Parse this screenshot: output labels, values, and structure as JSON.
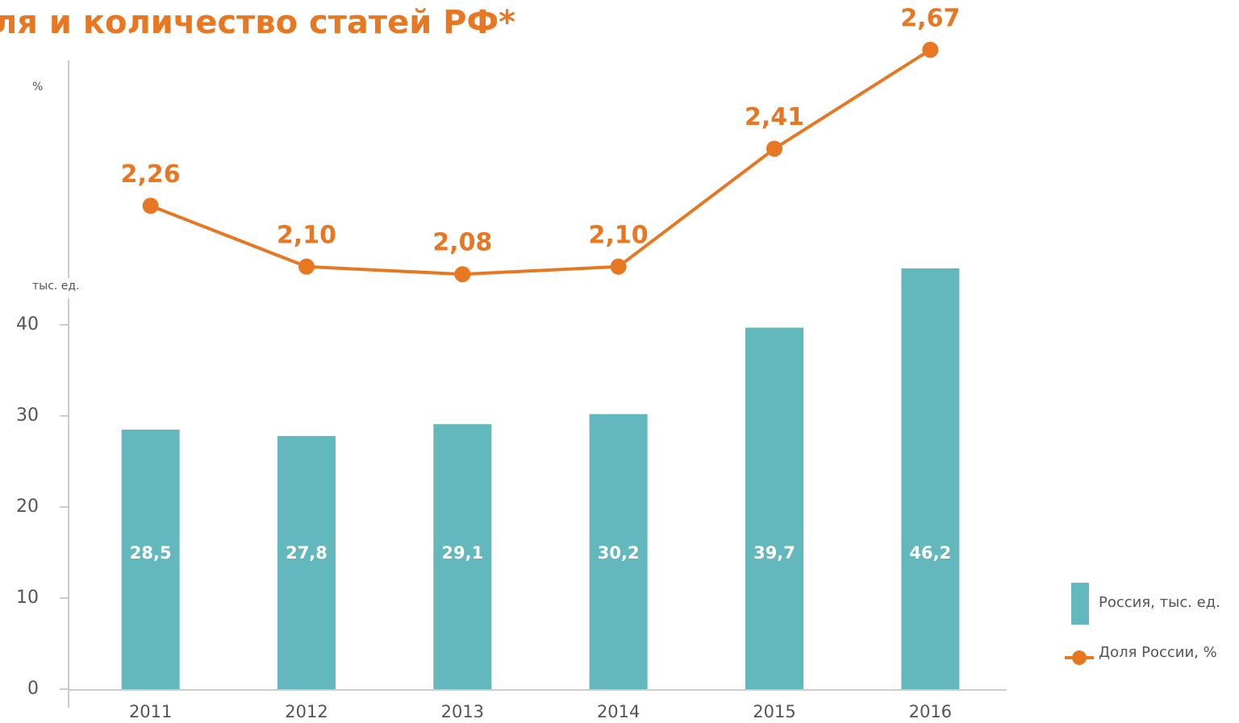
{
  "chart_data": [
    {
      "type": "bar",
      "title": "ля и количество статей РФ*",
      "axis_label": "тыс. ед.",
      "categories": [
        "2011",
        "2012",
        "2013",
        "2014",
        "2015",
        "2016"
      ],
      "series": [
        {
          "name": "Россия, тыс. ед.",
          "color": "#63b8bd",
          "values": [
            28.5,
            27.8,
            29.1,
            30.2,
            39.7,
            46.2
          ],
          "value_labels": [
            "28,5",
            "27,8",
            "29,1",
            "30,2",
            "39,7",
            "46,2"
          ]
        }
      ],
      "ylim": [
        0,
        47
      ],
      "yticks": [
        0,
        10,
        20,
        30,
        40
      ]
    },
    {
      "type": "line",
      "axis_label": "%",
      "series": [
        {
          "name": "Доля России, %",
          "color": "#e87722",
          "values": [
            2.26,
            2.1,
            2.08,
            2.1,
            2.41,
            2.67
          ],
          "value_labels": [
            "2,26",
            "2,10",
            "2,08",
            "2,10",
            "2,41",
            "2,67"
          ]
        }
      ],
      "ylim": [
        2.0,
        2.75
      ]
    }
  ]
}
